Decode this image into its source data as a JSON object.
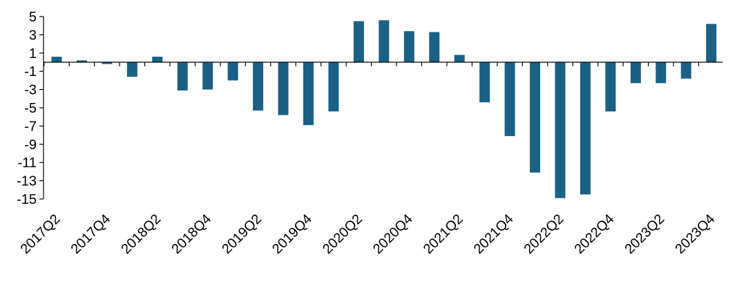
{
  "chart_data": {
    "type": "bar",
    "title": "",
    "xlabel": "",
    "ylabel": "",
    "ylim": [
      -15,
      5
    ],
    "yticks": [
      5,
      3,
      1,
      -1,
      -3,
      -5,
      -7,
      -9,
      -11,
      -13,
      -15
    ],
    "grid": false,
    "color": "#1a6185",
    "categories": [
      "2017Q2",
      "2017Q3",
      "2017Q4",
      "2018Q1",
      "2018Q2",
      "2018Q3",
      "2018Q4",
      "2019Q1",
      "2019Q2",
      "2019Q3",
      "2019Q4",
      "2020Q1",
      "2020Q2",
      "2020Q3",
      "2020Q4",
      "2021Q1",
      "2021Q2",
      "2021Q3",
      "2021Q4",
      "2022Q1",
      "2022Q2",
      "2022Q3",
      "2022Q4",
      "2023Q1",
      "2023Q2",
      "2023Q3",
      "2023Q4"
    ],
    "shown_xtick_labels": [
      "2017Q2",
      "2017Q4",
      "2018Q2",
      "2018Q4",
      "2019Q2",
      "2019Q4",
      "2020Q2",
      "2020Q4",
      "2021Q2",
      "2021Q4",
      "2022Q2",
      "2022Q4",
      "2023Q2",
      "2023Q4"
    ],
    "values": [
      0.6,
      0.2,
      -0.2,
      -1.6,
      0.6,
      -3.1,
      -3.0,
      -2.0,
      -5.3,
      -5.8,
      -6.9,
      -5.4,
      4.5,
      4.6,
      3.4,
      3.3,
      0.8,
      -4.4,
      -8.1,
      -12.1,
      -14.9,
      -14.5,
      -5.4,
      -2.3,
      -2.3,
      -1.8,
      4.2
    ]
  }
}
